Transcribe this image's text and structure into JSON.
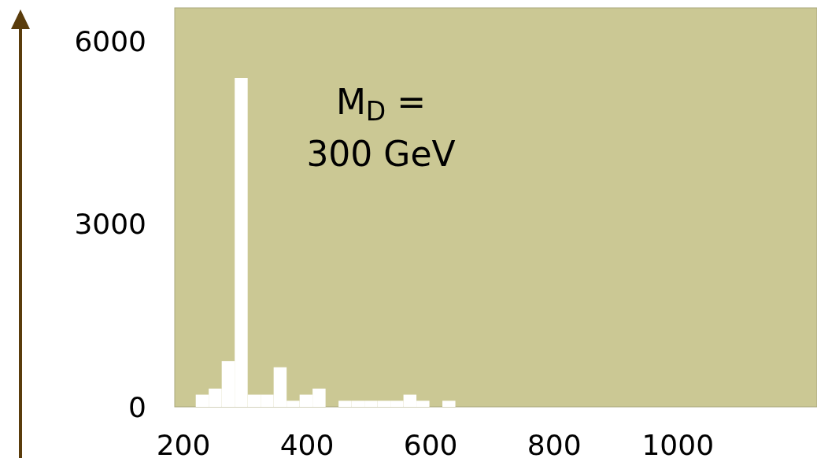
{
  "chart_data": {
    "type": "histogram",
    "bins": [
      220,
      241,
      262,
      283,
      304,
      325,
      346,
      367,
      388,
      409,
      430,
      451,
      472,
      493,
      514,
      535,
      556,
      577,
      598,
      619,
      640
    ],
    "values": [
      200,
      300,
      750,
      5400,
      200,
      200,
      650,
      100,
      200,
      300,
      0,
      100,
      100,
      100,
      100,
      100,
      200,
      100,
      0,
      100
    ],
    "color": "#ffffff",
    "xlim": [
      186,
      1225
    ],
    "xticks": [
      200,
      400,
      600,
      800,
      1000
    ],
    "ylim": [
      0,
      6550
    ],
    "yticks": [
      0,
      3000,
      6000
    ],
    "grid": false,
    "annotations": [
      "M$_{D}$ =\n300 GeV"
    ]
  }
}
